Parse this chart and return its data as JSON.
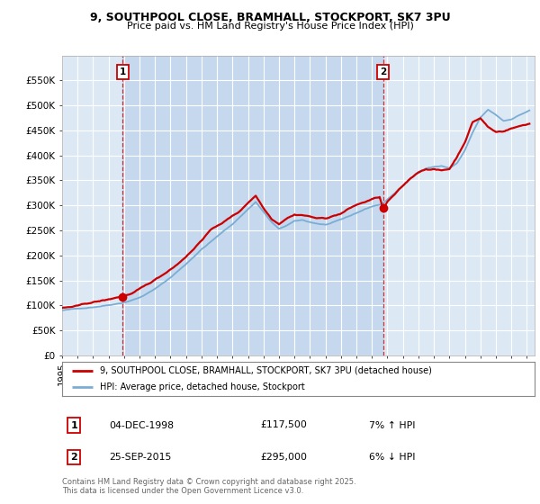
{
  "title_line1": "9, SOUTHPOOL CLOSE, BRAMHALL, STOCKPORT, SK7 3PU",
  "title_line2": "Price paid vs. HM Land Registry's House Price Index (HPI)",
  "xlim_start": 1995.0,
  "xlim_end": 2025.5,
  "ylim_min": 0,
  "ylim_max": 600000,
  "yticks": [
    0,
    50000,
    100000,
    150000,
    200000,
    250000,
    300000,
    350000,
    400000,
    450000,
    500000,
    550000
  ],
  "ytick_labels": [
    "£0",
    "£50K",
    "£100K",
    "£150K",
    "£200K",
    "£250K",
    "£300K",
    "£350K",
    "£400K",
    "£450K",
    "£500K",
    "£550K"
  ],
  "xtick_years": [
    1995,
    1996,
    1997,
    1998,
    1999,
    2000,
    2001,
    2002,
    2003,
    2004,
    2005,
    2006,
    2007,
    2008,
    2009,
    2010,
    2011,
    2012,
    2013,
    2014,
    2015,
    2016,
    2017,
    2018,
    2019,
    2020,
    2021,
    2022,
    2023,
    2024,
    2025
  ],
  "sale1_date": 1998.92,
  "sale1_price": 117500,
  "sale1_label": "1",
  "sale2_date": 2015.73,
  "sale2_price": 295000,
  "sale2_label": "2",
  "vline1_x": 1998.92,
  "vline2_x": 2015.73,
  "legend_line1": "9, SOUTHPOOL CLOSE, BRAMHALL, STOCKPORT, SK7 3PU (detached house)",
  "legend_line2": "HPI: Average price, detached house, Stockport",
  "table_row1": [
    "1",
    "04-DEC-1998",
    "£117,500",
    "7% ↑ HPI"
  ],
  "table_row2": [
    "2",
    "25-SEP-2015",
    "£295,000",
    "6% ↓ HPI"
  ],
  "copyright_text": "Contains HM Land Registry data © Crown copyright and database right 2025.\nThis data is licensed under the Open Government Licence v3.0.",
  "hpi_color": "#7aadd4",
  "price_color": "#cc0000",
  "dot_color": "#cc0000",
  "bg_color": "#ffffff",
  "plot_bg_color": "#dce9f5",
  "grid_color": "#ffffff",
  "vline_color": "#cc0000",
  "shade_color": "#c5d8ee",
  "hpi_anchors_t": [
    1995.0,
    1996.0,
    1997.0,
    1998.0,
    1999.0,
    2000.0,
    2001.0,
    2002.0,
    2003.0,
    2004.0,
    2005.0,
    2006.0,
    2007.0,
    2007.5,
    2008.0,
    2008.5,
    2009.0,
    2009.5,
    2010.0,
    2010.5,
    2011.0,
    2011.5,
    2012.0,
    2012.5,
    2013.0,
    2013.5,
    2014.0,
    2014.5,
    2015.0,
    2015.5,
    2015.73,
    2016.0,
    2016.5,
    2017.0,
    2017.5,
    2018.0,
    2018.5,
    2019.0,
    2019.5,
    2020.0,
    2020.5,
    2021.0,
    2021.5,
    2022.0,
    2022.5,
    2023.0,
    2023.5,
    2024.0,
    2024.5,
    2025.2
  ],
  "hpi_anchors_v": [
    90000,
    93000,
    97000,
    102000,
    108000,
    118000,
    135000,
    158000,
    185000,
    215000,
    240000,
    265000,
    295000,
    310000,
    290000,
    270000,
    255000,
    262000,
    270000,
    272000,
    268000,
    265000,
    263000,
    267000,
    272000,
    278000,
    285000,
    292000,
    298000,
    302000,
    305000,
    312000,
    325000,
    340000,
    355000,
    368000,
    375000,
    378000,
    380000,
    375000,
    385000,
    410000,
    445000,
    475000,
    490000,
    480000,
    468000,
    472000,
    480000,
    490000
  ],
  "price_anchors_t": [
    1995.0,
    1996.0,
    1997.0,
    1998.0,
    1998.92,
    1999.5,
    2000.5,
    2001.5,
    2002.5,
    2003.5,
    2004.5,
    2005.5,
    2006.5,
    2007.0,
    2007.5,
    2008.0,
    2008.5,
    2009.0,
    2009.5,
    2010.0,
    2010.5,
    2011.0,
    2011.5,
    2012.0,
    2012.5,
    2013.0,
    2013.5,
    2014.0,
    2014.5,
    2015.0,
    2015.5,
    2015.73,
    2016.0,
    2016.5,
    2017.0,
    2017.5,
    2018.0,
    2018.5,
    2019.0,
    2019.5,
    2020.0,
    2020.5,
    2021.0,
    2021.5,
    2022.0,
    2022.5,
    2023.0,
    2023.5,
    2024.0,
    2024.5,
    2025.2
  ],
  "price_anchors_v": [
    95000,
    98000,
    105000,
    110000,
    117500,
    122000,
    138000,
    158000,
    182000,
    212000,
    248000,
    268000,
    288000,
    305000,
    320000,
    295000,
    275000,
    265000,
    278000,
    285000,
    285000,
    282000,
    278000,
    278000,
    283000,
    288000,
    297000,
    305000,
    310000,
    316000,
    320000,
    295000,
    310000,
    325000,
    340000,
    355000,
    368000,
    375000,
    375000,
    372000,
    375000,
    400000,
    430000,
    470000,
    478000,
    460000,
    450000,
    452000,
    458000,
    462000,
    468000
  ]
}
